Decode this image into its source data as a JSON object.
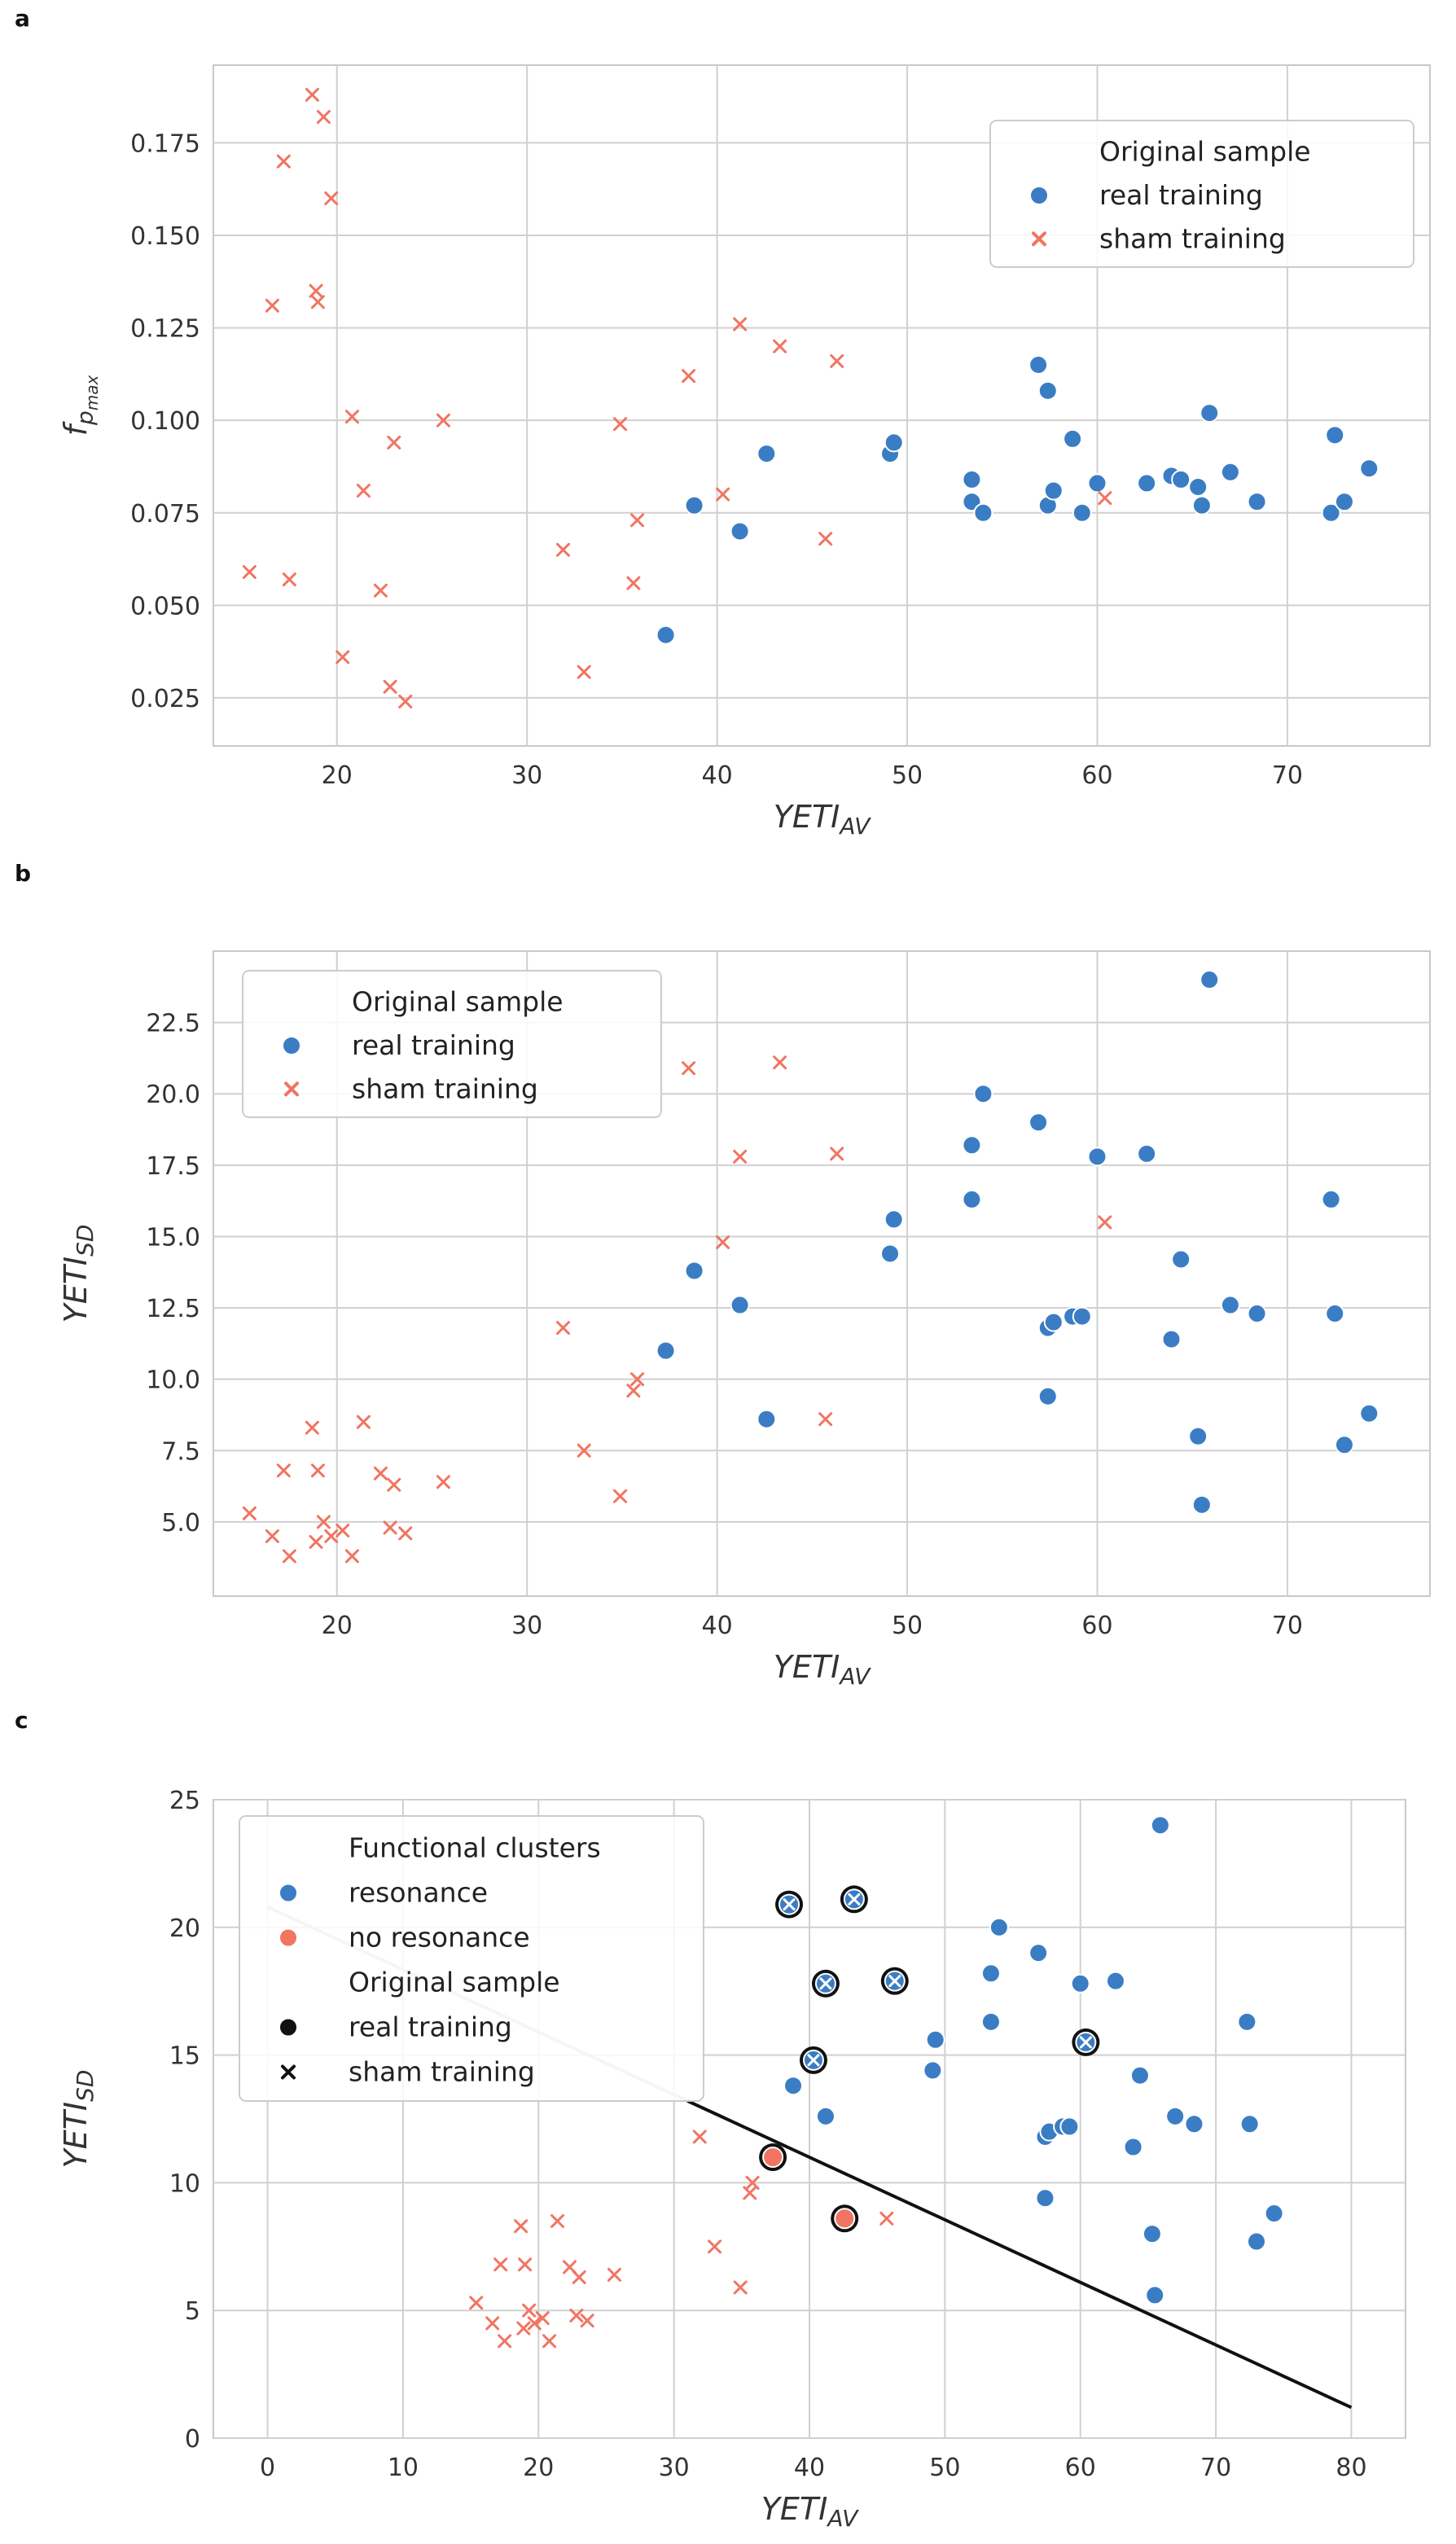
{
  "colors": {
    "real": "#3b7dc4",
    "sham": "#f07562",
    "resonance": "#3b7dc4",
    "no_resonance": "#f07562",
    "grid": "#d0d0d0",
    "frame": "#c8c8c8",
    "black": "#111111"
  },
  "chart_data": [
    {
      "panel": "a",
      "type": "scatter",
      "xlabel_main": "YETI",
      "xlabel_sub": "AV",
      "ylabel_main": "f",
      "ylabel_sub": "p",
      "ylabel_subsub": "max",
      "xlim": [
        13.5,
        77.5
      ],
      "ylim": [
        0.012,
        0.196
      ],
      "xticks": [
        20,
        30,
        40,
        50,
        60,
        70
      ],
      "xtick_labels": [
        "20",
        "30",
        "40",
        "50",
        "60",
        "70"
      ],
      "yticks": [
        0.025,
        0.05,
        0.075,
        0.1,
        0.125,
        0.15,
        0.175
      ],
      "ytick_labels": [
        "0.025",
        "0.050",
        "0.075",
        "0.100",
        "0.125",
        "0.150",
        "0.175"
      ],
      "grid": true,
      "legend": {
        "placement": "top-right",
        "entries": [
          {
            "label": "Original sample",
            "marker": "none"
          },
          {
            "label": "real training",
            "marker": "circle",
            "color": "real"
          },
          {
            "label": "sham training",
            "marker": "x",
            "color": "sham"
          }
        ]
      },
      "series": [
        {
          "name": "real training",
          "marker": "circle",
          "color": "real",
          "points": [
            [
              37.3,
              0.042
            ],
            [
              38.8,
              0.077
            ],
            [
              41.2,
              0.07
            ],
            [
              42.6,
              0.091
            ],
            [
              49.1,
              0.091
            ],
            [
              49.3,
              0.094
            ],
            [
              53.4,
              0.084
            ],
            [
              53.4,
              0.078
            ],
            [
              54.0,
              0.075
            ],
            [
              56.9,
              0.115
            ],
            [
              57.4,
              0.108
            ],
            [
              57.4,
              0.077
            ],
            [
              57.7,
              0.081
            ],
            [
              58.7,
              0.095
            ],
            [
              59.2,
              0.075
            ],
            [
              60.0,
              0.083
            ],
            [
              62.6,
              0.083
            ],
            [
              63.9,
              0.085
            ],
            [
              64.4,
              0.084
            ],
            [
              65.3,
              0.082
            ],
            [
              65.5,
              0.077
            ],
            [
              65.9,
              0.102
            ],
            [
              67.0,
              0.086
            ],
            [
              68.4,
              0.078
            ],
            [
              72.3,
              0.075
            ],
            [
              72.5,
              0.096
            ],
            [
              73.0,
              0.078
            ],
            [
              74.3,
              0.087
            ]
          ]
        },
        {
          "name": "sham training",
          "marker": "x",
          "color": "sham",
          "points": [
            [
              15.4,
              0.059
            ],
            [
              16.6,
              0.131
            ],
            [
              17.2,
              0.17
            ],
            [
              17.5,
              0.057
            ],
            [
              18.7,
              0.188
            ],
            [
              18.9,
              0.135
            ],
            [
              19.0,
              0.132
            ],
            [
              19.3,
              0.182
            ],
            [
              19.7,
              0.16
            ],
            [
              20.3,
              0.036
            ],
            [
              20.8,
              0.101
            ],
            [
              21.4,
              0.081
            ],
            [
              22.3,
              0.054
            ],
            [
              22.8,
              0.028
            ],
            [
              23.0,
              0.094
            ],
            [
              23.6,
              0.024
            ],
            [
              25.6,
              0.1
            ],
            [
              31.9,
              0.065
            ],
            [
              33.0,
              0.032
            ],
            [
              34.9,
              0.099
            ],
            [
              35.6,
              0.056
            ],
            [
              35.8,
              0.073
            ],
            [
              38.5,
              0.112
            ],
            [
              40.3,
              0.08
            ],
            [
              41.2,
              0.126
            ],
            [
              43.3,
              0.12
            ],
            [
              45.7,
              0.068
            ],
            [
              46.3,
              0.116
            ],
            [
              60.4,
              0.079
            ]
          ]
        }
      ]
    },
    {
      "panel": "b",
      "type": "scatter",
      "xlabel_main": "YETI",
      "xlabel_sub": "AV",
      "ylabel_main": "YETI",
      "ylabel_sub": "SD",
      "xlim": [
        13.5,
        77.5
      ],
      "ylim": [
        2.4,
        25.0
      ],
      "xticks": [
        20,
        30,
        40,
        50,
        60,
        70
      ],
      "xtick_labels": [
        "20",
        "30",
        "40",
        "50",
        "60",
        "70"
      ],
      "yticks": [
        5,
        7.5,
        10,
        12.5,
        15,
        17.5,
        20,
        22.5
      ],
      "ytick_labels": [
        "5.0",
        "7.5",
        "10.0",
        "12.5",
        "15.0",
        "17.5",
        "20.0",
        "22.5"
      ],
      "grid": true,
      "legend": {
        "placement": "top-left",
        "entries": [
          {
            "label": "Original sample",
            "marker": "none"
          },
          {
            "label": "real training",
            "marker": "circle",
            "color": "real"
          },
          {
            "label": "sham training",
            "marker": "x",
            "color": "sham"
          }
        ]
      },
      "series": [
        {
          "name": "real training",
          "marker": "circle",
          "color": "real",
          "points": [
            [
              37.3,
              11.0
            ],
            [
              38.8,
              13.8
            ],
            [
              41.2,
              12.6
            ],
            [
              42.6,
              8.6
            ],
            [
              49.1,
              14.4
            ],
            [
              49.3,
              15.6
            ],
            [
              53.4,
              18.2
            ],
            [
              53.4,
              16.3
            ],
            [
              54.0,
              20.0
            ],
            [
              56.9,
              19.0
            ],
            [
              57.4,
              11.8
            ],
            [
              57.7,
              12.0
            ],
            [
              57.4,
              9.4
            ],
            [
              58.7,
              12.2
            ],
            [
              59.2,
              12.2
            ],
            [
              60.0,
              17.8
            ],
            [
              62.6,
              17.9
            ],
            [
              63.9,
              11.4
            ],
            [
              64.4,
              14.2
            ],
            [
              65.3,
              8.0
            ],
            [
              65.5,
              5.6
            ],
            [
              65.9,
              24.0
            ],
            [
              67.0,
              12.6
            ],
            [
              68.4,
              12.3
            ],
            [
              72.3,
              16.3
            ],
            [
              72.5,
              12.3
            ],
            [
              73.0,
              7.7
            ],
            [
              74.3,
              8.8
            ]
          ]
        },
        {
          "name": "sham training",
          "marker": "x",
          "color": "sham",
          "points": [
            [
              15.4,
              5.3
            ],
            [
              16.6,
              4.5
            ],
            [
              17.2,
              6.8
            ],
            [
              17.5,
              3.8
            ],
            [
              18.7,
              8.3
            ],
            [
              18.9,
              4.3
            ],
            [
              19.0,
              6.8
            ],
            [
              19.3,
              5.0
            ],
            [
              19.7,
              4.5
            ],
            [
              20.3,
              4.7
            ],
            [
              20.8,
              3.8
            ],
            [
              21.4,
              8.5
            ],
            [
              22.3,
              6.7
            ],
            [
              22.8,
              4.8
            ],
            [
              23.0,
              6.3
            ],
            [
              23.6,
              4.6
            ],
            [
              25.6,
              6.4
            ],
            [
              31.9,
              11.8
            ],
            [
              33.0,
              7.5
            ],
            [
              34.9,
              5.9
            ],
            [
              35.6,
              9.6
            ],
            [
              35.8,
              10.0
            ],
            [
              38.5,
              20.9
            ],
            [
              40.3,
              14.8
            ],
            [
              41.2,
              17.8
            ],
            [
              43.3,
              21.1
            ],
            [
              45.7,
              8.6
            ],
            [
              46.3,
              17.9
            ],
            [
              60.4,
              15.5
            ]
          ]
        }
      ]
    },
    {
      "panel": "c",
      "type": "scatter",
      "xlabel_main": "YETI",
      "xlabel_sub": "AV",
      "ylabel_main": "YETI",
      "ylabel_sub": "SD",
      "xlim": [
        -4,
        84
      ],
      "ylim": [
        0,
        25
      ],
      "xticks": [
        0,
        10,
        20,
        30,
        40,
        50,
        60,
        70,
        80
      ],
      "xtick_labels": [
        "0",
        "10",
        "20",
        "30",
        "40",
        "50",
        "60",
        "70",
        "80"
      ],
      "yticks": [
        0,
        5,
        10,
        15,
        20,
        25
      ],
      "ytick_labels": [
        "0",
        "5",
        "10",
        "15",
        "20",
        "25"
      ],
      "grid": true,
      "boundary_line": {
        "x": [
          0,
          80
        ],
        "y": [
          20.8,
          1.2
        ]
      },
      "legend": {
        "placement": "top-left",
        "entries": [
          {
            "label": "Functional clusters",
            "marker": "none"
          },
          {
            "label": "resonance",
            "marker": "circle",
            "color": "resonance"
          },
          {
            "label": "no resonance",
            "marker": "circle",
            "color": "no_resonance"
          },
          {
            "label": "Original sample",
            "marker": "none"
          },
          {
            "label": "real training",
            "marker": "circle",
            "color": "black"
          },
          {
            "label": "sham training",
            "marker": "x",
            "color": "black"
          }
        ]
      },
      "series": [
        {
          "name": "resonance",
          "marker": "circle",
          "color": "resonance",
          "points": [
            [
              38.8,
              13.8
            ],
            [
              41.2,
              12.6
            ],
            [
              49.1,
              14.4
            ],
            [
              49.3,
              15.6
            ],
            [
              53.4,
              18.2
            ],
            [
              53.4,
              16.3
            ],
            [
              54.0,
              20.0
            ],
            [
              56.9,
              19.0
            ],
            [
              57.4,
              11.8
            ],
            [
              57.7,
              12.0
            ],
            [
              57.4,
              9.4
            ],
            [
              58.7,
              12.2
            ],
            [
              59.2,
              12.2
            ],
            [
              60.0,
              17.8
            ],
            [
              62.6,
              17.9
            ],
            [
              63.9,
              11.4
            ],
            [
              64.4,
              14.2
            ],
            [
              65.3,
              8.0
            ],
            [
              65.5,
              5.6
            ],
            [
              65.9,
              24.0
            ],
            [
              67.0,
              12.6
            ],
            [
              68.4,
              12.3
            ],
            [
              72.3,
              16.3
            ],
            [
              72.5,
              12.3
            ],
            [
              73.0,
              7.7
            ],
            [
              74.3,
              8.8
            ]
          ]
        },
        {
          "name": "no resonance",
          "marker": "x",
          "color": "no_resonance",
          "points": [
            [
              15.4,
              5.3
            ],
            [
              16.6,
              4.5
            ],
            [
              17.2,
              6.8
            ],
            [
              17.5,
              3.8
            ],
            [
              18.7,
              8.3
            ],
            [
              18.9,
              4.3
            ],
            [
              19.0,
              6.8
            ],
            [
              19.3,
              5.0
            ],
            [
              19.7,
              4.5
            ],
            [
              20.3,
              4.7
            ],
            [
              20.8,
              3.8
            ],
            [
              21.4,
              8.5
            ],
            [
              22.3,
              6.7
            ],
            [
              22.8,
              4.8
            ],
            [
              23.0,
              6.3
            ],
            [
              23.6,
              4.6
            ],
            [
              25.6,
              6.4
            ],
            [
              31.9,
              11.8
            ],
            [
              33.0,
              7.5
            ],
            [
              34.9,
              5.9
            ],
            [
              35.6,
              9.6
            ],
            [
              35.8,
              10.0
            ],
            [
              45.7,
              8.6
            ]
          ]
        },
        {
          "name": "no resonance (real)",
          "marker": "circle-ring",
          "color": "no_resonance",
          "points": [
            [
              37.3,
              11.0
            ],
            [
              42.6,
              8.6
            ]
          ]
        },
        {
          "name": "resonance (sham)",
          "marker": "x-ring",
          "color": "resonance",
          "points": [
            [
              38.5,
              20.9
            ],
            [
              40.3,
              14.8
            ],
            [
              41.2,
              17.8
            ],
            [
              43.3,
              21.1
            ],
            [
              46.3,
              17.9
            ],
            [
              60.4,
              15.5
            ]
          ]
        }
      ]
    }
  ]
}
